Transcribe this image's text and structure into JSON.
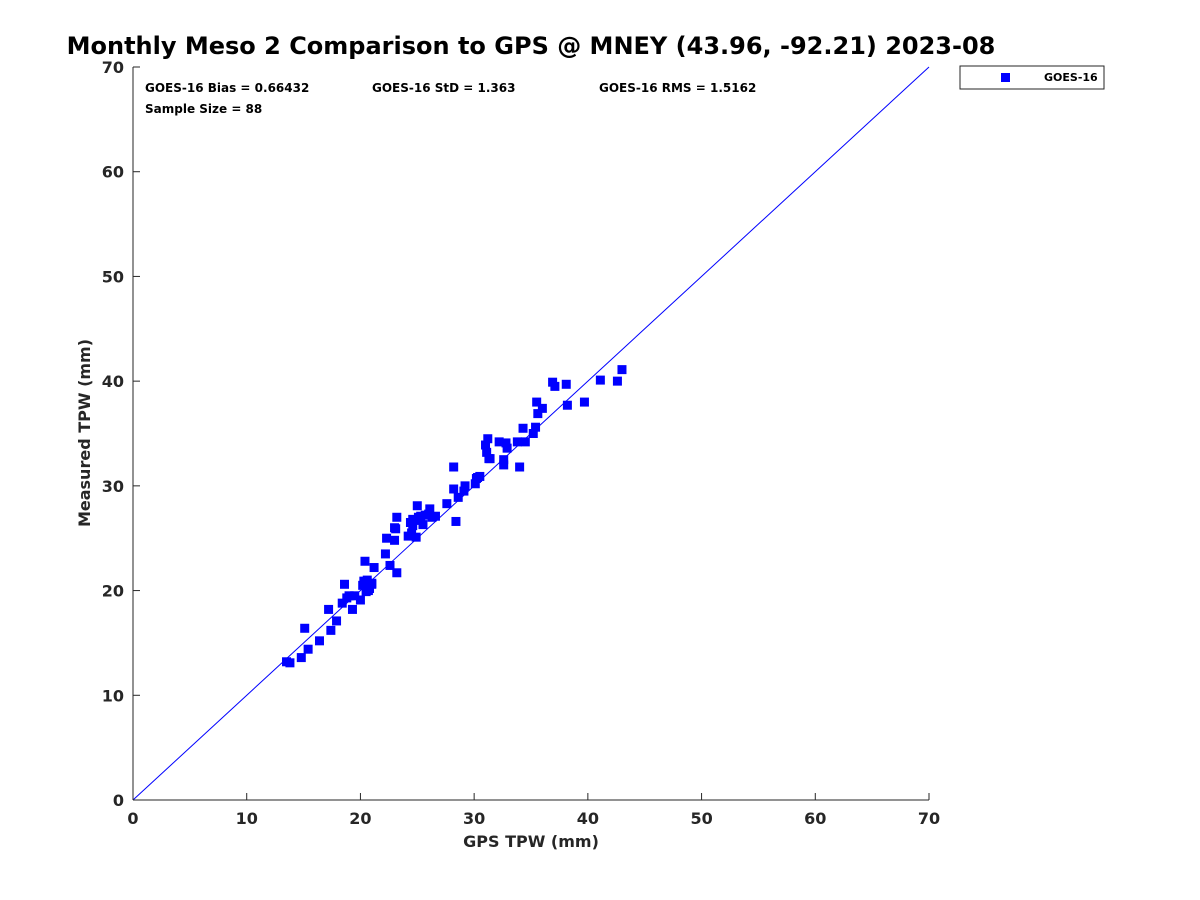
{
  "chart_data": {
    "type": "scatter",
    "title": "Monthly Meso 2 Comparison to GPS @ MNEY (43.96, -92.21) 2023-08",
    "xlabel": "GPS TPW (mm)",
    "ylabel": "Measured TPW (mm)",
    "xlim": [
      0,
      70
    ],
    "ylim": [
      0,
      70
    ],
    "xticks": [
      0,
      10,
      20,
      30,
      40,
      50,
      60,
      70
    ],
    "yticks": [
      0,
      10,
      20,
      30,
      40,
      50,
      60,
      70
    ],
    "legend": "top-right",
    "reference_line": {
      "name": "1:1",
      "x": [
        0,
        70
      ],
      "y": [
        0,
        70
      ],
      "color": "#0000ff"
    },
    "stats": {
      "bias": "GOES-16 Bias = 0.66432",
      "std": "GOES-16 StD = 1.363",
      "rms": "GOES-16 RMS = 1.5162",
      "sample": "Sample Size = 88"
    },
    "series": [
      {
        "name": "GOES-16",
        "color": "#0000ff",
        "marker": "square",
        "points": [
          [
            13.5,
            13.2
          ],
          [
            13.8,
            13.1
          ],
          [
            14.8,
            13.6
          ],
          [
            15.1,
            16.4
          ],
          [
            15.4,
            14.4
          ],
          [
            16.4,
            15.2
          ],
          [
            17.2,
            18.2
          ],
          [
            17.4,
            16.2
          ],
          [
            17.9,
            17.1
          ],
          [
            18.4,
            18.8
          ],
          [
            18.6,
            20.6
          ],
          [
            18.8,
            19.3
          ],
          [
            19.3,
            18.2
          ],
          [
            19.5,
            19.5
          ],
          [
            20.0,
            19.1
          ],
          [
            20.2,
            20.5
          ],
          [
            20.4,
            22.8
          ],
          [
            20.5,
            19.9
          ],
          [
            20.6,
            21.0
          ],
          [
            20.8,
            20.2
          ],
          [
            21.0,
            20.6
          ],
          [
            21.2,
            22.2
          ],
          [
            22.2,
            23.5
          ],
          [
            22.3,
            25.0
          ],
          [
            22.6,
            22.4
          ],
          [
            23.0,
            24.8
          ],
          [
            23.0,
            26.0
          ],
          [
            23.2,
            27.0
          ],
          [
            23.2,
            21.7
          ],
          [
            24.2,
            25.2
          ],
          [
            24.4,
            26.5
          ],
          [
            24.5,
            25.5
          ],
          [
            24.6,
            26.2
          ],
          [
            24.8,
            26.7
          ],
          [
            24.9,
            25.1
          ],
          [
            25.0,
            28.1
          ],
          [
            25.1,
            27.0
          ],
          [
            25.5,
            26.3
          ],
          [
            25.7,
            27.2
          ],
          [
            26.0,
            27.3
          ],
          [
            26.1,
            27.8
          ],
          [
            26.3,
            27.0
          ],
          [
            26.6,
            27.1
          ],
          [
            27.6,
            28.3
          ],
          [
            28.2,
            29.7
          ],
          [
            28.2,
            31.8
          ],
          [
            28.4,
            26.6
          ],
          [
            28.6,
            28.9
          ],
          [
            29.1,
            29.5
          ],
          [
            29.2,
            30.0
          ],
          [
            30.1,
            30.2
          ],
          [
            30.2,
            30.7
          ],
          [
            30.5,
            30.9
          ],
          [
            31.0,
            33.9
          ],
          [
            31.1,
            33.2
          ],
          [
            31.2,
            34.5
          ],
          [
            31.4,
            32.6
          ],
          [
            32.2,
            34.2
          ],
          [
            32.6,
            32.0
          ],
          [
            32.6,
            32.5
          ],
          [
            32.8,
            34.1
          ],
          [
            32.9,
            33.6
          ],
          [
            33.8,
            34.2
          ],
          [
            34.0,
            31.8
          ],
          [
            34.3,
            35.5
          ],
          [
            34.5,
            34.2
          ],
          [
            35.2,
            35.0
          ],
          [
            35.4,
            35.6
          ],
          [
            35.5,
            38.0
          ],
          [
            35.6,
            36.9
          ],
          [
            36.0,
            37.4
          ],
          [
            36.9,
            39.9
          ],
          [
            37.1,
            39.5
          ],
          [
            38.1,
            39.7
          ],
          [
            38.2,
            37.7
          ],
          [
            39.7,
            38.0
          ],
          [
            41.1,
            40.1
          ],
          [
            42.6,
            40.0
          ],
          [
            43.0,
            41.1
          ],
          [
            20.3,
            20.9
          ],
          [
            21.0,
            20.7
          ],
          [
            20.7,
            20.0
          ],
          [
            24.6,
            26.8
          ],
          [
            25.3,
            27.1
          ],
          [
            30.3,
            30.8
          ],
          [
            31.3,
            32.6
          ],
          [
            19.0,
            19.5
          ],
          [
            23.1,
            25.9
          ]
        ]
      }
    ]
  }
}
